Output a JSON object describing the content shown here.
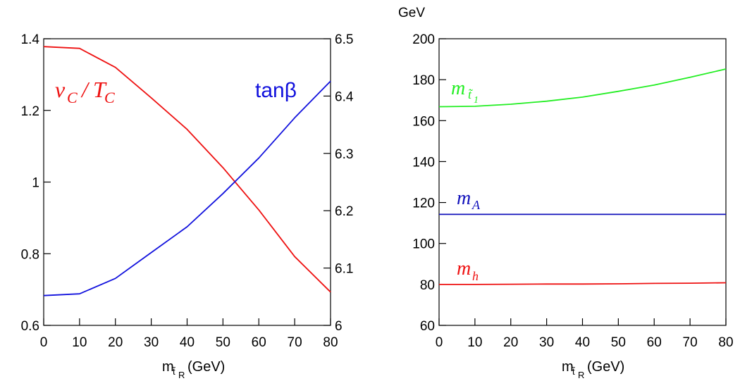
{
  "chart_data": [
    {
      "type": "line",
      "x": [
        0,
        10,
        20,
        30,
        40,
        50,
        60,
        70,
        80
      ],
      "xlim": [
        0,
        80
      ],
      "xticks": [
        "0",
        "10",
        "20",
        "30",
        "40",
        "50",
        "60",
        "70",
        "80"
      ],
      "xlabel": {
        "main": "m",
        "sub": "t̃",
        "subsub": "R",
        "unit": "(GeV)"
      },
      "ylim_left": [
        0.6,
        1.4
      ],
      "yticks_left": [
        "0.6",
        "0.8",
        "1",
        "1.2",
        "1.4"
      ],
      "ylim_right": [
        6.0,
        6.5
      ],
      "yticks_right": [
        "6",
        "6.1",
        "6.2",
        "6.3",
        "6.4",
        "6.5"
      ],
      "series": [
        {
          "name": "vC/TC",
          "axis": "left",
          "color": "#ee1111",
          "label_main": "v",
          "label_sub": "C",
          "label_slash": "/",
          "label_main2": "T",
          "label_sub2": "C",
          "values": [
            1.378,
            1.373,
            1.32,
            1.235,
            1.147,
            1.04,
            0.922,
            0.792,
            0.693
          ]
        },
        {
          "name": "tanβ",
          "axis": "right",
          "color": "#1111dd",
          "label": "tanβ",
          "values": [
            6.052,
            6.055,
            6.082,
            6.127,
            6.172,
            6.23,
            6.292,
            6.362,
            6.426
          ]
        }
      ]
    },
    {
      "type": "line",
      "x": [
        0,
        10,
        20,
        30,
        40,
        50,
        60,
        70,
        80
      ],
      "xlim": [
        0,
        80
      ],
      "xticks": [
        "0",
        "10",
        "20",
        "30",
        "40",
        "50",
        "60",
        "70",
        "80"
      ],
      "xlabel": {
        "main": "m",
        "sub": "t̃",
        "subsub": "R",
        "unit": "(GeV)"
      },
      "ylabel": "GeV",
      "ylim": [
        60,
        200
      ],
      "yticks": [
        "60",
        "80",
        "100",
        "120",
        "140",
        "160",
        "180",
        "200"
      ],
      "series": [
        {
          "name": "m_t1",
          "color": "#22ee22",
          "label_main": "m",
          "label_sub": "t̃",
          "label_subsub": "1",
          "values": [
            166.8,
            167.0,
            168.0,
            169.5,
            171.5,
            174.3,
            177.4,
            181.2,
            185.2
          ]
        },
        {
          "name": "m_A",
          "color": "#1111bb",
          "label_main": "m",
          "label_sub": "A",
          "values": [
            114.2,
            114.2,
            114.2,
            114.2,
            114.2,
            114.2,
            114.2,
            114.2,
            114.2
          ]
        },
        {
          "name": "m_h",
          "color": "#ee1111",
          "label_main": "m",
          "label_sub": "h",
          "values": [
            80.0,
            80.0,
            80.1,
            80.2,
            80.2,
            80.3,
            80.5,
            80.6,
            80.8
          ]
        }
      ]
    }
  ]
}
